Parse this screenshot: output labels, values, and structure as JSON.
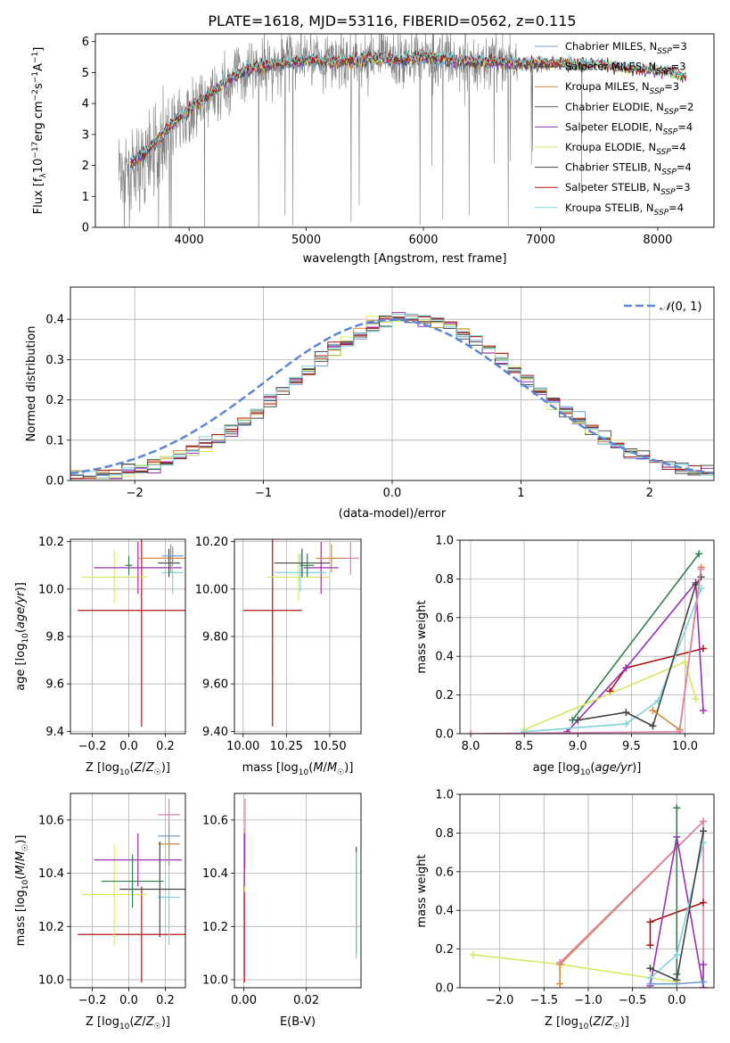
{
  "figure": {
    "title": "PLATE=1618, MJD=53116, FIBERID=0562, z=0.115"
  },
  "chart_data": [
    {
      "id": "spectrum",
      "type": "line",
      "xlabel": "wavelength [Angstrom, rest frame]",
      "ylabel": "Flux [f_λ10^-17 erg cm^-2 s^-1 A^-1]",
      "xlim": [
        3200,
        8480
      ],
      "ylim": [
        0,
        6.25
      ],
      "xticks": [
        4000,
        5000,
        6000,
        7000,
        8000
      ],
      "yticks": [
        0,
        1,
        2,
        3,
        4,
        5,
        6
      ],
      "grid": false,
      "legend_position": "top-right",
      "observed": {
        "color": "#808080",
        "x": [
          3400,
          3500,
          3600,
          3700,
          3800,
          3900,
          4000,
          4100,
          4200,
          4300,
          4400,
          4500,
          4600,
          4700,
          4800,
          4900,
          5000,
          5100,
          5200,
          5300,
          5400,
          5500,
          5600,
          5700,
          5800,
          5900,
          6000,
          6100,
          6200,
          6300,
          6400,
          6500,
          6600,
          6700,
          6800,
          6900,
          7000,
          7100,
          7200,
          7300,
          7400
        ],
        "y": [
          1.8,
          1.6,
          2.0,
          2.4,
          2.9,
          3.3,
          3.6,
          3.9,
          4.3,
          4.6,
          4.9,
          5.1,
          5.2,
          5.3,
          5.4,
          5.4,
          5.5,
          5.5,
          5.3,
          5.4,
          5.5,
          5.4,
          5.5,
          5.5,
          5.4,
          5.5,
          5.6,
          5.5,
          5.5,
          5.4,
          5.3,
          5.3,
          5.4,
          5.3,
          5.3,
          5.3,
          5.2,
          5.3,
          5.3,
          5.2,
          5.2
        ],
        "noise": 1.6
      },
      "series": [
        {
          "name": "Chabrier MILES, N_SSP=3",
          "color": "#6f9bd1"
        },
        {
          "name": "Salpeter MILES, N_SSP=3",
          "color": "#4f4f4f"
        },
        {
          "name": "Kroupa MILES, N_SSP=3",
          "color": "#d28a3c"
        },
        {
          "name": "Chabrier ELODIE, N_SSP=2",
          "color": "#5a5a5a"
        },
        {
          "name": "Salpeter ELODIE, N_SSP=4",
          "color": "#9b30b4"
        },
        {
          "name": "Kroupa ELODIE, N_SSP=4",
          "color": "#d7e860"
        },
        {
          "name": "Chabrier STELIB, N_SSP=4",
          "color": "#444444"
        },
        {
          "name": "Salpeter STELIB, N_SSP=3",
          "color": "#b01515"
        },
        {
          "name": "Kroupa STELIB, N_SSP=4",
          "color": "#7fd3d8"
        }
      ],
      "model": {
        "x": [
          3400,
          3500,
          3600,
          3700,
          3800,
          3900,
          4000,
          4100,
          4200,
          4300,
          4400,
          4500,
          4600,
          4700,
          4800,
          4900,
          5000,
          5200,
          5400,
          5600,
          5800,
          6000,
          6200,
          6400,
          6600,
          6800,
          7000,
          7200,
          7400,
          7600,
          7800,
          8000,
          8200
        ],
        "y": [
          2.2,
          2.1,
          2.3,
          2.7,
          3.1,
          3.5,
          3.8,
          4.1,
          4.4,
          4.7,
          4.9,
          5.1,
          5.2,
          5.25,
          5.3,
          5.35,
          5.4,
          5.35,
          5.4,
          5.45,
          5.4,
          5.5,
          5.45,
          5.35,
          5.35,
          5.3,
          5.3,
          5.3,
          5.25,
          5.2,
          5.1,
          5.05,
          4.9
        ]
      }
    },
    {
      "id": "residuals",
      "type": "step",
      "xlabel": "(data-model)/error",
      "ylabel": "Normed distribution",
      "xlim": [
        -2.5,
        2.5
      ],
      "ylim": [
        0,
        0.48
      ],
      "xticks": [
        -2,
        -1,
        0,
        1,
        2
      ],
      "yticks": [
        0.0,
        0.1,
        0.2,
        0.3,
        0.4
      ],
      "grid": true,
      "legend_position": "top-right",
      "legend": "N(0,1)",
      "gaussian_color": "#5b87d6",
      "bin_width": 0.1,
      "series_colors": [
        "#6f9bd1",
        "#4f4f4f",
        "#d28a3c",
        "#5a5a5a",
        "#9b30b4",
        "#d7e860",
        "#444444",
        "#b01515",
        "#7fd3d8"
      ]
    },
    {
      "id": "age-vs-Z",
      "type": "errorbar",
      "xlabel": "Z [log10(Z/Z☉)]",
      "ylabel": "age  [log10(age/yr)]",
      "xlim": [
        -0.32,
        0.31
      ],
      "ylim": [
        9.39,
        10.21
      ],
      "xticks": [
        -0.2,
        0.0,
        0.2
      ],
      "yticks": [
        9.4,
        9.6,
        9.8,
        10.0,
        10.2
      ],
      "grid": true,
      "points": [
        {
          "x": 0.07,
          "y": 9.91,
          "xerr": 0.35,
          "yerr": 0.49,
          "color": "#b01515"
        },
        {
          "x": -0.08,
          "y": 10.05,
          "xerr": 0.18,
          "yerr": 0.11,
          "color": "#d7e860"
        },
        {
          "x": 0.05,
          "y": 10.09,
          "xerr": 0.24,
          "yerr": 0.11,
          "color": "#9b30b4"
        },
        {
          "x": 0.24,
          "y": 10.07,
          "xerr": 0.06,
          "yerr": 0.09,
          "color": "#7fd3d8"
        },
        {
          "x": 0.23,
          "y": 10.13,
          "xerr": 0.18,
          "yerr": 0.06,
          "color": "#d28a3c"
        },
        {
          "x": 0.22,
          "y": 10.11,
          "xerr": 0.06,
          "yerr": 0.06,
          "color": "#444444"
        },
        {
          "x": 0.24,
          "y": 10.14,
          "xerr": 0.06,
          "yerr": 0.04,
          "color": "#6f9bd1"
        },
        {
          "x": 0.0,
          "y": 10.1,
          "xerr": 0.02,
          "yerr": 0.04,
          "color": "#2f7f4f"
        }
      ]
    },
    {
      "id": "age-vs-mass",
      "type": "errorbar",
      "xlabel": "mass [log10(M/M☉)]",
      "ylabel": "",
      "xlim": [
        9.95,
        10.68
      ],
      "ylim": [
        9.39,
        10.21
      ],
      "xticks": [
        10.0,
        10.25,
        10.5
      ],
      "yticks": [
        9.4,
        9.6,
        9.8,
        10.0,
        10.2
      ],
      "grid": true,
      "points": [
        {
          "x": 10.17,
          "y": 9.91,
          "xerr": 0.17,
          "yerr": 0.49,
          "color": "#b01515"
        },
        {
          "x": 10.32,
          "y": 10.05,
          "xerr": 0.18,
          "yerr": 0.1,
          "color": "#d7e860"
        },
        {
          "x": 10.45,
          "y": 10.09,
          "xerr": 0.1,
          "yerr": 0.11,
          "color": "#9b30b4"
        },
        {
          "x": 10.33,
          "y": 10.07,
          "xerr": 0.15,
          "yerr": 0.08,
          "color": "#7fd3d8"
        },
        {
          "x": 10.51,
          "y": 10.13,
          "xerr": 0.09,
          "yerr": 0.06,
          "color": "#d28a3c"
        },
        {
          "x": 10.34,
          "y": 10.11,
          "xerr": 0.16,
          "yerr": 0.06,
          "color": "#444444"
        },
        {
          "x": 10.62,
          "y": 10.13,
          "xerr": 0.05,
          "yerr": 0.07,
          "color": "#e080b0"
        },
        {
          "x": 10.37,
          "y": 10.1,
          "xerr": 0.04,
          "yerr": 0.05,
          "color": "#2f7f4f"
        }
      ]
    },
    {
      "id": "weight-vs-age",
      "type": "line",
      "xlabel": "age  [log10(age/yr)]",
      "ylabel": "mass weight",
      "xlim": [
        7.9,
        10.27
      ],
      "ylim": [
        0,
        1.0
      ],
      "xticks": [
        8.0,
        8.5,
        9.0,
        9.5,
        10.0
      ],
      "yticks": [
        0.0,
        0.2,
        0.4,
        0.6,
        0.8,
        1.0
      ],
      "grid": true,
      "series": [
        {
          "color": "#2f7f4f",
          "x": [
            8.95,
            10.13
          ],
          "y": [
            0.07,
            0.93
          ]
        },
        {
          "color": "#b01515",
          "x": [
            9.3,
            9.45,
            10.17
          ],
          "y": [
            0.22,
            0.34,
            0.44
          ]
        },
        {
          "color": "#9b30b4",
          "x": [
            8.9,
            9.45,
            10.1,
            10.17
          ],
          "y": [
            0.01,
            0.34,
            0.78,
            0.12
          ]
        },
        {
          "color": "#d7e860",
          "x": [
            8.5,
            10.0,
            10.1
          ],
          "y": [
            0.02,
            0.37,
            0.18
          ]
        },
        {
          "color": "#7fd3d8",
          "x": [
            8.5,
            9.45,
            9.75,
            10.15
          ],
          "y": [
            0.01,
            0.05,
            0.17,
            0.75
          ]
        },
        {
          "color": "#444444",
          "x": [
            9.0,
            9.45,
            9.7,
            10.1,
            10.15
          ],
          "y": [
            0.07,
            0.11,
            0.04,
            0.77,
            0.81
          ]
        },
        {
          "color": "#d28a3c",
          "x": [
            9.7,
            9.95,
            10.15
          ],
          "y": [
            0.12,
            0.02,
            0.86
          ]
        },
        {
          "color": "#e080b0",
          "x": [
            8.0,
            9.95,
            10.15
          ],
          "y": [
            0.0,
            0.01,
            0.85
          ]
        }
      ]
    },
    {
      "id": "mass-vs-Z",
      "type": "errorbar",
      "xlabel": "Z [log10(Z/Z☉)]",
      "ylabel": "mass [log10(M/M☉)]",
      "xlim": [
        -0.32,
        0.31
      ],
      "ylim": [
        9.97,
        10.7
      ],
      "xticks": [
        -0.2,
        0.0,
        0.2
      ],
      "yticks": [
        10.0,
        10.2,
        10.4,
        10.6
      ],
      "grid": true,
      "points": [
        {
          "x": 0.07,
          "y": 10.17,
          "xerr": 0.35,
          "yerr": 0.18,
          "color": "#b01515"
        },
        {
          "x": -0.08,
          "y": 10.32,
          "xerr": 0.18,
          "yerr": 0.19,
          "color": "#d7e860"
        },
        {
          "x": 0.05,
          "y": 10.45,
          "xerr": 0.24,
          "yerr": 0.1,
          "color": "#9b30b4"
        },
        {
          "x": 0.22,
          "y": 10.31,
          "xerr": 0.06,
          "yerr": 0.18,
          "color": "#7fd3d8"
        },
        {
          "x": 0.22,
          "y": 10.51,
          "xerr": 0.06,
          "yerr": 0.08,
          "color": "#d28a3c"
        },
        {
          "x": 0.17,
          "y": 10.34,
          "xerr": 0.22,
          "yerr": 0.18,
          "color": "#444444"
        },
        {
          "x": 0.22,
          "y": 10.54,
          "xerr": 0.06,
          "yerr": 0.05,
          "color": "#6f9bd1"
        },
        {
          "x": 0.22,
          "y": 10.62,
          "xerr": 0.06,
          "yerr": 0.06,
          "color": "#e080b0"
        },
        {
          "x": 0.02,
          "y": 10.37,
          "xerr": 0.17,
          "yerr": 0.1,
          "color": "#2f7f4f"
        }
      ]
    },
    {
      "id": "mass-vs-EBV",
      "type": "errorbar",
      "xlabel": "E(B-V)",
      "ylabel": "",
      "xlim": [
        -0.003,
        0.0375
      ],
      "ylim": [
        9.97,
        10.7
      ],
      "xticks": [
        0.0,
        0.02
      ],
      "yticks": [
        10.0,
        10.2,
        10.4,
        10.6
      ],
      "grid": true,
      "points": [
        {
          "x": 0.0002,
          "y": 10.17,
          "xerr": 0.0,
          "yerr": 0.18,
          "color": "#b01515"
        },
        {
          "x": 0.0003,
          "y": 10.45,
          "xerr": 0.0,
          "yerr": 0.12,
          "color": "#d7e860"
        },
        {
          "x": 0.0004,
          "y": 10.55,
          "xerr": 0.0,
          "yerr": 0.13,
          "color": "#e080b0"
        },
        {
          "x": 0.0002,
          "y": 10.45,
          "xerr": 0.0,
          "yerr": 0.1,
          "color": "#9b30b4"
        },
        {
          "x": 0.036,
          "y": 10.3,
          "xerr": 0.0,
          "yerr": 0.2,
          "color": "#444444"
        },
        {
          "x": 0.036,
          "y": 10.28,
          "xerr": 0.0,
          "yerr": 0.2,
          "color": "#7fd3d8"
        }
      ]
    },
    {
      "id": "weight-vs-Z",
      "type": "line",
      "xlabel": "Z [log10(Z/Z☉)]",
      "ylabel": "mass weight",
      "xlim": [
        -2.45,
        0.42
      ],
      "ylim": [
        0,
        1.0
      ],
      "xticks": [
        -2.0,
        -1.5,
        -1.0,
        -0.5,
        0.0
      ],
      "yticks": [
        0.0,
        0.2,
        0.4,
        0.6,
        0.8,
        1.0
      ],
      "grid": true,
      "series": [
        {
          "color": "#d7e860",
          "x": [
            -2.3,
            -1.3,
            0.0
          ],
          "y": [
            0.17,
            0.12,
            0.03
          ]
        },
        {
          "color": "#d28a3c",
          "x": [
            -1.32,
            -1.32,
            0.3
          ],
          "y": [
            0.02,
            0.12,
            0.86
          ]
        },
        {
          "color": "#e080b0",
          "x": [
            -1.32,
            0.3,
            0.3
          ],
          "y": [
            0.13,
            0.86,
            0.0
          ]
        },
        {
          "color": "#b01515",
          "x": [
            -0.3,
            -0.3,
            0.3
          ],
          "y": [
            0.22,
            0.34,
            0.44
          ]
        },
        {
          "color": "#9b30b4",
          "x": [
            -0.3,
            0.0,
            0.3,
            0.3
          ],
          "y": [
            0.01,
            0.78,
            0.0,
            0.12
          ]
        },
        {
          "color": "#2f7f4f",
          "x": [
            0.0,
            0.0
          ],
          "y": [
            0.07,
            0.93
          ]
        },
        {
          "color": "#7fd3d8",
          "x": [
            -0.3,
            0.0,
            0.3
          ],
          "y": [
            0.05,
            0.17,
            0.75
          ]
        },
        {
          "color": "#444444",
          "x": [
            -0.3,
            0.0,
            0.3
          ],
          "y": [
            0.1,
            0.04,
            0.81
          ]
        },
        {
          "color": "#6f9bd1",
          "x": [
            -0.3,
            0.0,
            0.3
          ],
          "y": [
            0.02,
            0.02,
            0.03
          ]
        }
      ]
    }
  ]
}
